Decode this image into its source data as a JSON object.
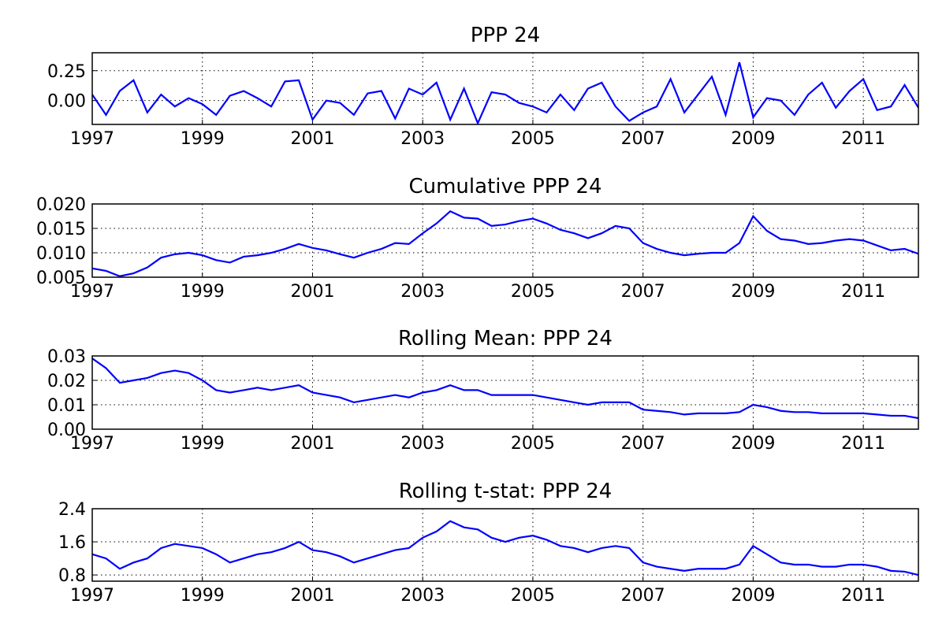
{
  "chart_data": [
    {
      "type": "line",
      "title": "PPP 24",
      "color": "#0000ff",
      "grid": true,
      "x": [
        1997,
        1997.25,
        1997.5,
        1997.75,
        1998,
        1998.25,
        1998.5,
        1998.75,
        1999,
        1999.25,
        1999.5,
        1999.75,
        2000,
        2000.25,
        2000.5,
        2000.75,
        2001,
        2001.25,
        2001.5,
        2001.75,
        2002,
        2002.25,
        2002.5,
        2002.75,
        2003,
        2003.25,
        2003.5,
        2003.75,
        2004,
        2004.25,
        2004.5,
        2004.75,
        2005,
        2005.25,
        2005.5,
        2005.75,
        2006,
        2006.25,
        2006.5,
        2006.75,
        2007,
        2007.25,
        2007.5,
        2007.75,
        2008,
        2008.25,
        2008.5,
        2008.75,
        2009,
        2009.25,
        2009.5,
        2009.75,
        2010,
        2010.25,
        2010.5,
        2010.75,
        2011,
        2011.25,
        2011.5,
        2011.75,
        2012
      ],
      "values": [
        0.05,
        -0.12,
        0.08,
        0.17,
        -0.1,
        0.05,
        -0.05,
        0.02,
        -0.03,
        -0.12,
        0.04,
        0.08,
        0.02,
        -0.05,
        0.16,
        0.17,
        -0.16,
        0.0,
        -0.02,
        -0.12,
        0.06,
        0.08,
        -0.15,
        0.1,
        0.05,
        0.15,
        -0.16,
        0.1,
        -0.19,
        0.07,
        0.05,
        -0.02,
        -0.05,
        -0.1,
        0.05,
        -0.08,
        0.1,
        0.15,
        -0.05,
        -0.17,
        -0.1,
        -0.05,
        0.18,
        -0.1,
        0.05,
        0.2,
        -0.12,
        0.32,
        -0.14,
        0.02,
        0.0,
        -0.12,
        0.05,
        0.15,
        -0.06,
        0.08,
        0.18,
        -0.08,
        -0.05,
        0.13,
        -0.06
      ],
      "xlim": [
        1997,
        2012
      ],
      "xticks": [
        1997,
        1999,
        2001,
        2003,
        2005,
        2007,
        2009,
        2011
      ],
      "ylim": [
        -0.2,
        0.4
      ],
      "yticks": [
        {
          "value": 0,
          "label": "0.00"
        },
        {
          "value": 0.25,
          "label": "0.25"
        }
      ]
    },
    {
      "type": "line",
      "title": "Cumulative PPP 24",
      "color": "#0000ff",
      "grid": true,
      "x": [
        1997,
        1997.25,
        1997.5,
        1997.75,
        1998,
        1998.25,
        1998.5,
        1998.75,
        1999,
        1999.25,
        1999.5,
        1999.75,
        2000,
        2000.25,
        2000.5,
        2000.75,
        2001,
        2001.25,
        2001.5,
        2001.75,
        2002,
        2002.25,
        2002.5,
        2002.75,
        2003,
        2003.25,
        2003.5,
        2003.75,
        2004,
        2004.25,
        2004.5,
        2004.75,
        2005,
        2005.25,
        2005.5,
        2005.75,
        2006,
        2006.25,
        2006.5,
        2006.75,
        2007,
        2007.25,
        2007.5,
        2007.75,
        2008,
        2008.25,
        2008.5,
        2008.75,
        2009,
        2009.25,
        2009.5,
        2009.75,
        2010,
        2010.25,
        2010.5,
        2010.75,
        2011,
        2011.25,
        2011.5,
        2011.75,
        2012
      ],
      "values": [
        0.0068,
        0.0063,
        0.0052,
        0.0058,
        0.007,
        0.009,
        0.0097,
        0.01,
        0.0095,
        0.0085,
        0.008,
        0.0092,
        0.0095,
        0.01,
        0.0108,
        0.0118,
        0.011,
        0.0105,
        0.0097,
        0.009,
        0.01,
        0.0108,
        0.012,
        0.0118,
        0.014,
        0.016,
        0.0185,
        0.0172,
        0.017,
        0.0155,
        0.0158,
        0.0165,
        0.017,
        0.016,
        0.0147,
        0.014,
        0.013,
        0.014,
        0.0155,
        0.015,
        0.012,
        0.0108,
        0.01,
        0.0095,
        0.0098,
        0.01,
        0.01,
        0.012,
        0.0175,
        0.0145,
        0.0128,
        0.0125,
        0.0118,
        0.012,
        0.0125,
        0.0128,
        0.0125,
        0.0115,
        0.0105,
        0.0108,
        0.0098
      ],
      "xlim": [
        1997,
        2012
      ],
      "xticks": [
        1997,
        1999,
        2001,
        2003,
        2005,
        2007,
        2009,
        2011
      ],
      "ylim": [
        0.005,
        0.02
      ],
      "yticks": [
        0.005,
        {
          "value": 0.01,
          "label": "0.010"
        },
        0.015,
        {
          "value": 0.02,
          "label": "0.020"
        }
      ]
    },
    {
      "type": "line",
      "title": "Rolling Mean: PPP 24",
      "color": "#0000ff",
      "grid": true,
      "x": [
        1997,
        1997.25,
        1997.5,
        1997.75,
        1998,
        1998.25,
        1998.5,
        1998.75,
        1999,
        1999.25,
        1999.5,
        1999.75,
        2000,
        2000.25,
        2000.5,
        2000.75,
        2001,
        2001.25,
        2001.5,
        2001.75,
        2002,
        2002.25,
        2002.5,
        2002.75,
        2003,
        2003.25,
        2003.5,
        2003.75,
        2004,
        2004.25,
        2004.5,
        2004.75,
        2005,
        2005.25,
        2005.5,
        2005.75,
        2006,
        2006.25,
        2006.5,
        2006.75,
        2007,
        2007.25,
        2007.5,
        2007.75,
        2008,
        2008.25,
        2008.5,
        2008.75,
        2009,
        2009.25,
        2009.5,
        2009.75,
        2010,
        2010.25,
        2010.5,
        2010.75,
        2011,
        2011.25,
        2011.5,
        2011.75,
        2012
      ],
      "values": [
        0.029,
        0.025,
        0.019,
        0.02,
        0.021,
        0.023,
        0.024,
        0.023,
        0.02,
        0.016,
        0.015,
        0.016,
        0.017,
        0.016,
        0.017,
        0.018,
        0.015,
        0.014,
        0.013,
        0.011,
        0.012,
        0.013,
        0.014,
        0.013,
        0.015,
        0.016,
        0.018,
        0.016,
        0.016,
        0.014,
        0.014,
        0.014,
        0.014,
        0.013,
        0.012,
        0.011,
        0.01,
        0.011,
        0.011,
        0.011,
        0.008,
        0.0075,
        0.007,
        0.006,
        0.0065,
        0.0065,
        0.0065,
        0.007,
        0.01,
        0.009,
        0.0075,
        0.007,
        0.007,
        0.0065,
        0.0065,
        0.0065,
        0.0065,
        0.006,
        0.0055,
        0.0055,
        0.0045
      ],
      "xlim": [
        1997,
        2012
      ],
      "xticks": [
        1997,
        1999,
        2001,
        2003,
        2005,
        2007,
        2009,
        2011
      ],
      "ylim": [
        0,
        0.03
      ],
      "yticks": [
        {
          "value": 0,
          "label": "0.00"
        },
        0.01,
        0.02,
        0.03
      ]
    },
    {
      "type": "line",
      "title": "Rolling t-stat: PPP 24",
      "color": "#0000ff",
      "grid": true,
      "x": [
        1997,
        1997.25,
        1997.5,
        1997.75,
        1998,
        1998.25,
        1998.5,
        1998.75,
        1999,
        1999.25,
        1999.5,
        1999.75,
        2000,
        2000.25,
        2000.5,
        2000.75,
        2001,
        2001.25,
        2001.5,
        2001.75,
        2002,
        2002.25,
        2002.5,
        2002.75,
        2003,
        2003.25,
        2003.5,
        2003.75,
        2004,
        2004.25,
        2004.5,
        2004.75,
        2005,
        2005.25,
        2005.5,
        2005.75,
        2006,
        2006.25,
        2006.5,
        2006.75,
        2007,
        2007.25,
        2007.5,
        2007.75,
        2008,
        2008.25,
        2008.5,
        2008.75,
        2009,
        2009.25,
        2009.5,
        2009.75,
        2010,
        2010.25,
        2010.5,
        2010.75,
        2011,
        2011.25,
        2011.5,
        2011.75,
        2012
      ],
      "values": [
        1.3,
        1.2,
        0.95,
        1.1,
        1.2,
        1.45,
        1.55,
        1.5,
        1.45,
        1.3,
        1.1,
        1.2,
        1.3,
        1.35,
        1.45,
        1.6,
        1.4,
        1.35,
        1.25,
        1.1,
        1.2,
        1.3,
        1.4,
        1.45,
        1.7,
        1.85,
        2.1,
        1.95,
        1.9,
        1.7,
        1.6,
        1.7,
        1.75,
        1.65,
        1.5,
        1.45,
        1.35,
        1.45,
        1.5,
        1.45,
        1.1,
        1.0,
        0.95,
        0.9,
        0.95,
        0.95,
        0.95,
        1.05,
        1.5,
        1.3,
        1.1,
        1.05,
        1.05,
        1.0,
        1.0,
        1.05,
        1.05,
        1.0,
        0.9,
        0.88,
        0.8
      ],
      "xlim": [
        1997,
        2012
      ],
      "xticks": [
        1997,
        1999,
        2001,
        2003,
        2005,
        2007,
        2009,
        2011
      ],
      "ylim": [
        0.65,
        2.4
      ],
      "yticks": [
        0.8,
        1.6,
        2.4
      ]
    }
  ]
}
